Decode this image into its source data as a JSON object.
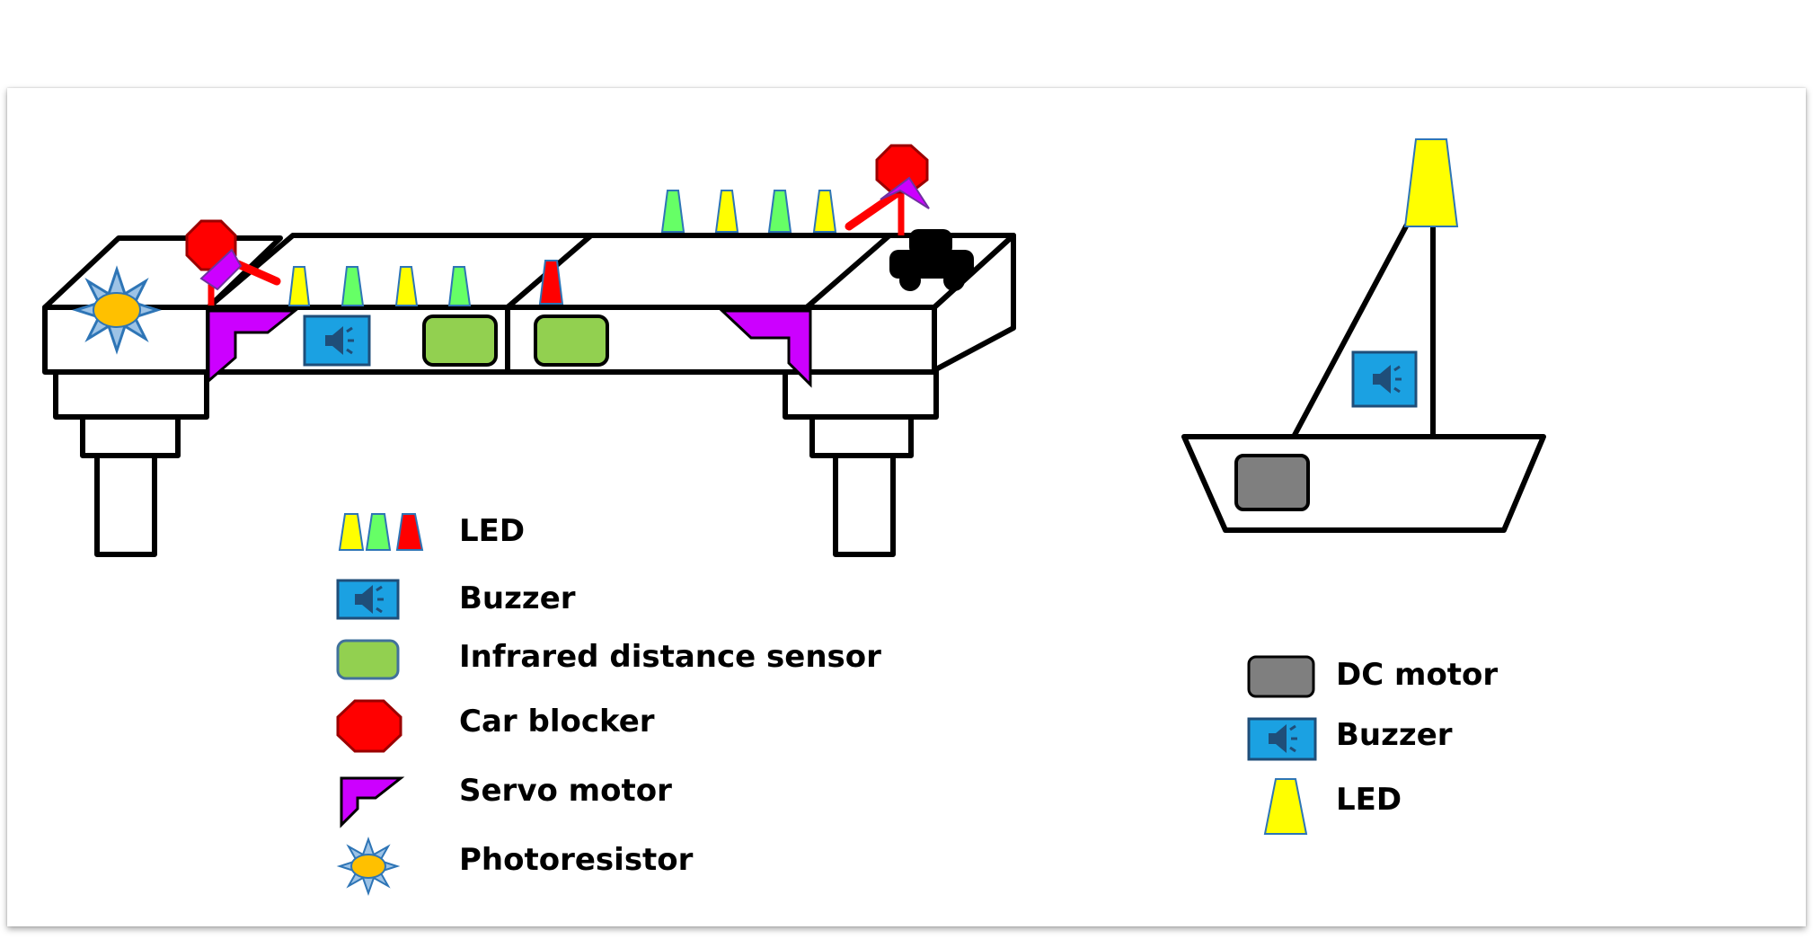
{
  "colors": {
    "led_yellow": "#ffff00",
    "led_green": "#66ff66",
    "led_red": "#ff0000",
    "buzzer_blue": "#1ba1e2",
    "sensor_green": "#92d050",
    "car_blocker_red": "#ff0000",
    "servo_purple": "#cc00ff",
    "photoresistor_orange": "#ffc000",
    "dc_motor_gray": "#7f7f7f",
    "outline": "#000000"
  },
  "bridge_legend": {
    "items": [
      {
        "icon": "led-icon",
        "label": "LED"
      },
      {
        "icon": "buzzer-icon",
        "label": "Buzzer"
      },
      {
        "icon": "infrared-sensor-icon",
        "label": "Infrared distance sensor"
      },
      {
        "icon": "car-blocker-icon",
        "label": "Car blocker"
      },
      {
        "icon": "servo-motor-icon",
        "label": "Servo motor"
      },
      {
        "icon": "photoresistor-icon",
        "label": "Photoresistor"
      }
    ]
  },
  "boat_legend": {
    "items": [
      {
        "icon": "dc-motor-icon",
        "label": "DC motor"
      },
      {
        "icon": "buzzer-icon",
        "label": "Buzzer"
      },
      {
        "icon": "led-icon",
        "label": "LED"
      }
    ]
  }
}
